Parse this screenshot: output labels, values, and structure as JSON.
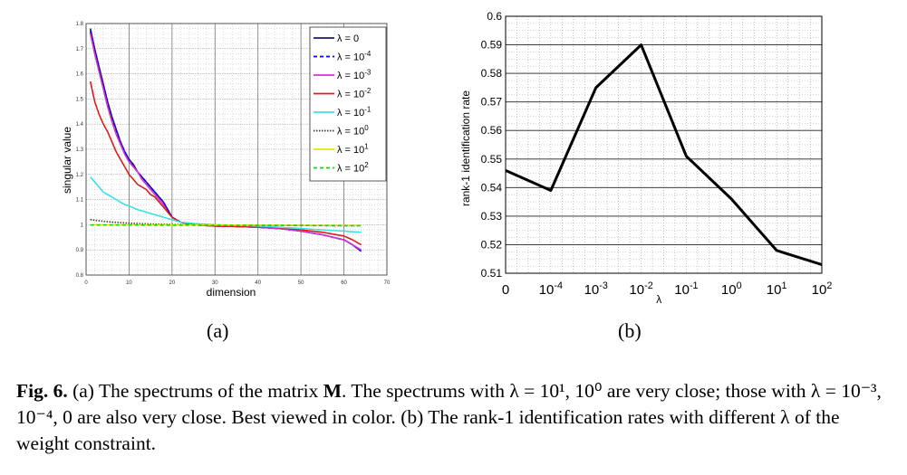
{
  "figure": {
    "label_a": "(a)",
    "label_b": "(b)",
    "caption": {
      "fig_label": "Fig. 6.",
      "part1": " (a) The spectrums of the matrix ",
      "matrix": "M",
      "part2": ". The spectrums with λ = 10¹, 10⁰ are very close; those with λ = 10⁻³, 10⁻⁴, 0 are also very close. Best viewed in color. (b) The rank-1 identification rates with different λ of the weight constraint."
    }
  },
  "chart_data": [
    {
      "type": "line",
      "xlabel": "dimension",
      "ylabel": "singular value",
      "xlim": [
        0,
        70
      ],
      "ylim": [
        0.8,
        1.8
      ],
      "xticks": [
        "0",
        "10",
        "20",
        "30",
        "40",
        "50",
        "60",
        "70"
      ],
      "yticks": [
        "0.8",
        "0.9",
        "1",
        "1.1",
        "1.2",
        "1.3",
        "1.4",
        "1.5",
        "1.6",
        "1.7",
        "1.8"
      ],
      "grid": true,
      "legend_position": "top-right",
      "series": [
        {
          "name": "λ = 0",
          "base": "λ = 10",
          "exp": "",
          "plain": "λ = 0",
          "color": "#1a1a6e",
          "dash": "",
          "x": [
            1,
            2,
            3,
            4,
            5,
            6,
            7,
            8,
            9,
            10,
            11,
            12,
            13,
            14,
            15,
            16,
            17,
            18,
            19,
            20,
            21,
            22,
            25,
            30,
            35,
            40,
            45,
            50,
            55,
            60,
            62,
            64
          ],
          "y": [
            1.78,
            1.7,
            1.63,
            1.56,
            1.49,
            1.43,
            1.38,
            1.33,
            1.29,
            1.26,
            1.24,
            1.21,
            1.19,
            1.17,
            1.15,
            1.13,
            1.11,
            1.09,
            1.06,
            1.03,
            1.02,
            1.01,
            1.0,
            0.995,
            0.993,
            0.99,
            0.985,
            0.975,
            0.96,
            0.94,
            0.92,
            0.895
          ]
        },
        {
          "name": "λ = 10^-4",
          "base": "λ = 10",
          "exp": "-4",
          "color": "#0000ff",
          "dash": "4,3",
          "x": [
            1,
            2,
            3,
            4,
            5,
            6,
            7,
            8,
            9,
            10,
            11,
            12,
            13,
            14,
            15,
            16,
            17,
            18,
            19,
            20,
            21,
            22,
            25,
            30,
            35,
            40,
            45,
            50,
            55,
            60,
            62,
            64
          ],
          "y": [
            1.77,
            1.69,
            1.62,
            1.55,
            1.48,
            1.42,
            1.37,
            1.33,
            1.29,
            1.26,
            1.23,
            1.21,
            1.19,
            1.17,
            1.15,
            1.13,
            1.11,
            1.09,
            1.06,
            1.03,
            1.02,
            1.01,
            1.0,
            0.995,
            0.993,
            0.99,
            0.985,
            0.975,
            0.96,
            0.94,
            0.92,
            0.895
          ]
        },
        {
          "name": "λ = 10^-3",
          "base": "λ = 10",
          "exp": "-3",
          "color": "#d633d6",
          "dash": "",
          "x": [
            1,
            2,
            3,
            4,
            5,
            6,
            7,
            8,
            9,
            10,
            11,
            12,
            13,
            14,
            15,
            16,
            17,
            18,
            19,
            20,
            21,
            22,
            25,
            30,
            35,
            40,
            45,
            50,
            55,
            60,
            62,
            64
          ],
          "y": [
            1.76,
            1.68,
            1.61,
            1.54,
            1.47,
            1.41,
            1.36,
            1.32,
            1.28,
            1.25,
            1.23,
            1.21,
            1.18,
            1.16,
            1.14,
            1.12,
            1.1,
            1.08,
            1.05,
            1.03,
            1.02,
            1.01,
            1.0,
            0.995,
            0.993,
            0.99,
            0.985,
            0.975,
            0.96,
            0.94,
            0.92,
            0.9
          ]
        },
        {
          "name": "λ = 10^-2",
          "base": "λ = 10",
          "exp": "-2",
          "color": "#d62020",
          "dash": "",
          "x": [
            1,
            2,
            3,
            4,
            5,
            6,
            7,
            8,
            9,
            10,
            11,
            12,
            13,
            14,
            15,
            16,
            17,
            18,
            19,
            20,
            21,
            22,
            25,
            30,
            35,
            40,
            45,
            50,
            55,
            60,
            62,
            64
          ],
          "y": [
            1.57,
            1.49,
            1.44,
            1.4,
            1.37,
            1.33,
            1.29,
            1.26,
            1.23,
            1.2,
            1.18,
            1.16,
            1.15,
            1.14,
            1.12,
            1.11,
            1.09,
            1.07,
            1.05,
            1.03,
            1.02,
            1.01,
            1.0,
            0.995,
            0.994,
            0.992,
            0.988,
            0.98,
            0.97,
            0.955,
            0.94,
            0.92
          ]
        },
        {
          "name": "λ = 10^-1",
          "base": "λ = 10",
          "exp": "-1",
          "color": "#40e0e8",
          "dash": "",
          "x": [
            1,
            2,
            3,
            4,
            5,
            6,
            7,
            8,
            9,
            10,
            12,
            14,
            16,
            18,
            20,
            22,
            25,
            30,
            35,
            40,
            45,
            50,
            55,
            60,
            62,
            64
          ],
          "y": [
            1.19,
            1.17,
            1.15,
            1.13,
            1.12,
            1.11,
            1.1,
            1.09,
            1.08,
            1.075,
            1.06,
            1.05,
            1.04,
            1.03,
            1.02,
            1.01,
            1.005,
            1.0,
            0.998,
            0.995,
            0.99,
            0.985,
            0.98,
            0.975,
            0.972,
            0.97
          ]
        },
        {
          "name": "λ = 10^0",
          "base": "λ = 10",
          "exp": "0",
          "color": "#3a3a3a",
          "dash": "1.5,1.5",
          "x": [
            1,
            5,
            10,
            15,
            20,
            25,
            30,
            40,
            50,
            60,
            64
          ],
          "y": [
            1.02,
            1.012,
            1.006,
            1.003,
            1.001,
            1.0,
            0.999,
            0.998,
            0.997,
            0.996,
            0.996
          ]
        },
        {
          "name": "λ = 10^1",
          "base": "λ = 10",
          "exp": "1",
          "color": "#e6e600",
          "dash": "",
          "x": [
            1,
            10,
            20,
            30,
            40,
            50,
            60,
            64
          ],
          "y": [
            1.0,
            1.0,
            0.999,
            0.999,
            0.998,
            0.998,
            0.997,
            0.997
          ]
        },
        {
          "name": "λ = 10^2",
          "base": "λ = 10",
          "exp": "2",
          "color": "#22cc22",
          "dash": "4,3",
          "x": [
            1,
            10,
            20,
            30,
            40,
            50,
            60,
            64
          ],
          "y": [
            0.999,
            0.999,
            0.998,
            0.998,
            0.997,
            0.997,
            0.996,
            0.996
          ]
        }
      ]
    },
    {
      "type": "line",
      "xlabel": "λ",
      "ylabel": "rank-1 identification rate",
      "ylim": [
        0.51,
        0.6
      ],
      "yticks": [
        "0.51",
        "0.52",
        "0.53",
        "0.54",
        "0.55",
        "0.56",
        "0.57",
        "0.58",
        "0.59",
        "0.6"
      ],
      "categories": [
        "0",
        "10^-4",
        "10^-3",
        "10^-2",
        "10^-1",
        "10^0",
        "10^1",
        "10^2"
      ],
      "category_labels": [
        {
          "base": "0",
          "exp": ""
        },
        {
          "base": "10",
          "exp": "-4"
        },
        {
          "base": "10",
          "exp": "-3"
        },
        {
          "base": "10",
          "exp": "-2"
        },
        {
          "base": "10",
          "exp": "-1"
        },
        {
          "base": "10",
          "exp": "0"
        },
        {
          "base": "10",
          "exp": "1"
        },
        {
          "base": "10",
          "exp": "2"
        }
      ],
      "grid": true,
      "series": [
        {
          "values": [
            0.546,
            0.539,
            0.575,
            0.59,
            0.551,
            0.536,
            0.518,
            0.513
          ],
          "color": "#000000"
        }
      ]
    }
  ]
}
